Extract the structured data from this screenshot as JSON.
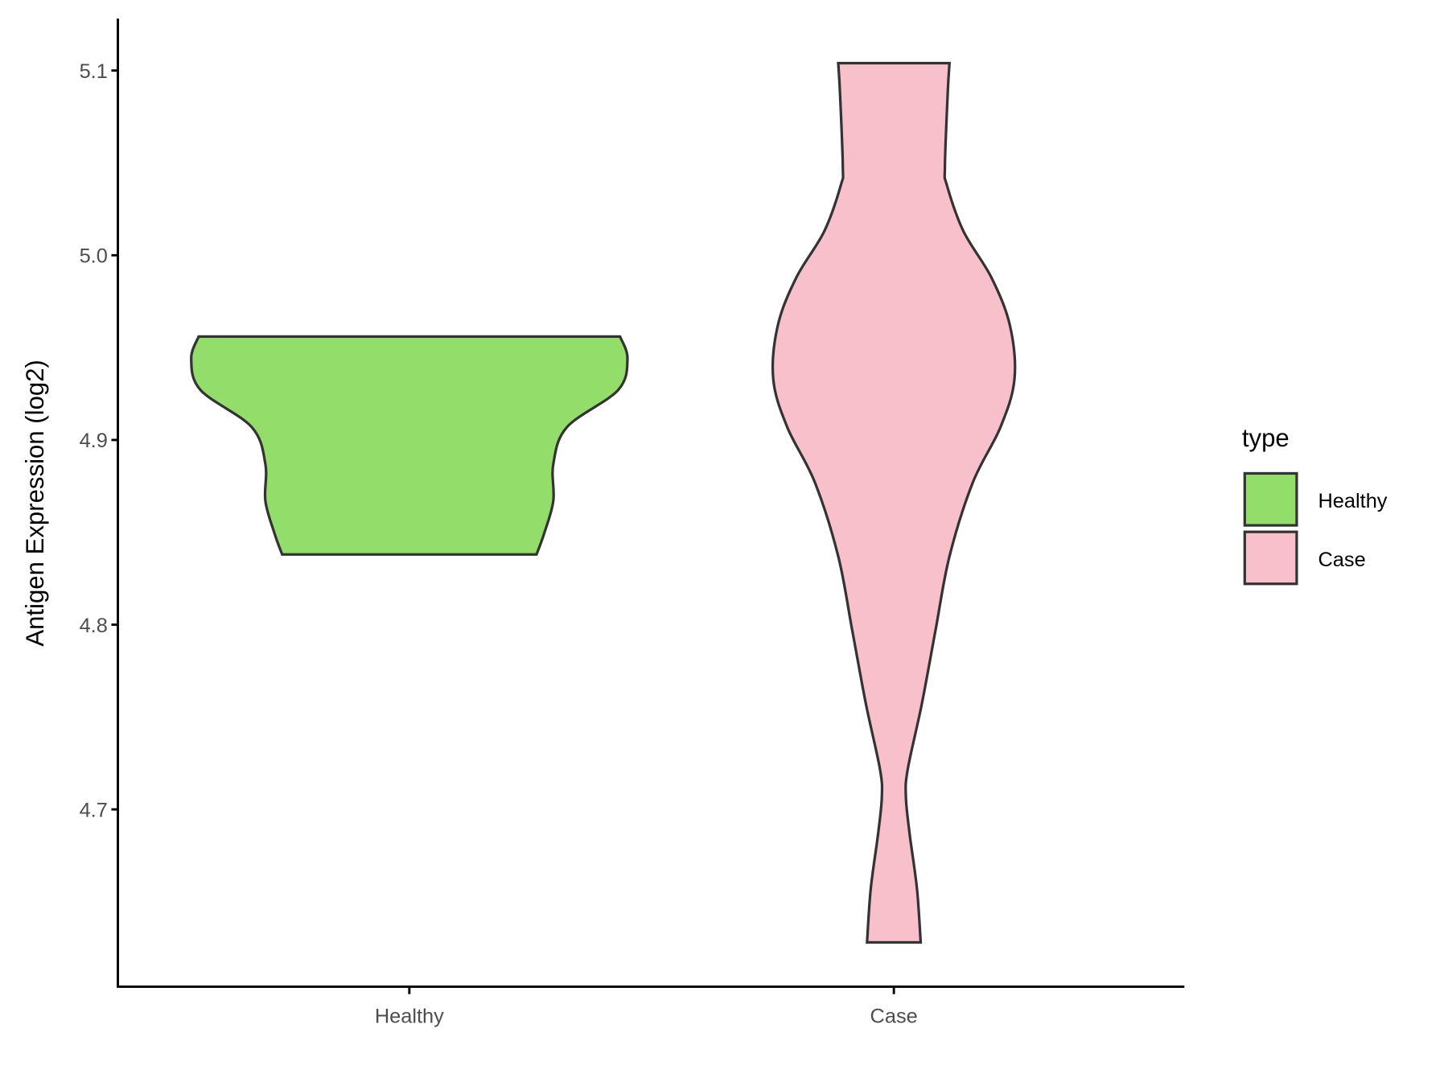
{
  "chart_data": {
    "type": "violin",
    "title": "",
    "xlabel": "",
    "ylabel": "Antigen Expression (log2)",
    "categories": [
      "Healthy",
      "Case"
    ],
    "yticks": [
      4.7,
      4.8,
      4.9,
      5.0,
      5.1
    ],
    "ytick_labels": [
      "4.7",
      "4.8",
      "4.9",
      "5.0",
      "5.1"
    ],
    "ylim": [
      4.605,
      5.128
    ],
    "grid": false,
    "legend": {
      "title": "type",
      "position": "right",
      "entries": [
        "Healthy",
        "Case"
      ]
    },
    "series": [
      {
        "name": "Healthy",
        "color": "#93DD6A",
        "profile": [
          [
            4.956,
            0.966
          ],
          [
            4.944,
            1.0
          ],
          [
            4.927,
            0.957
          ],
          [
            4.907,
            0.723
          ],
          [
            4.887,
            0.66
          ],
          [
            4.867,
            0.66
          ],
          [
            4.849,
            0.617
          ],
          [
            4.838,
            0.583
          ]
        ]
      },
      {
        "name": "Case",
        "color": "#F7C0CB",
        "profile": [
          [
            5.104,
            0.255
          ],
          [
            5.088,
            0.247
          ],
          [
            5.048,
            0.234
          ],
          [
            5.038,
            0.243
          ],
          [
            5.013,
            0.319
          ],
          [
            4.988,
            0.447
          ],
          [
            4.962,
            0.532
          ],
          [
            4.933,
            0.553
          ],
          [
            4.907,
            0.489
          ],
          [
            4.877,
            0.362
          ],
          [
            4.837,
            0.255
          ],
          [
            4.797,
            0.191
          ],
          [
            4.757,
            0.128
          ],
          [
            4.722,
            0.064
          ],
          [
            4.707,
            0.055
          ],
          [
            4.687,
            0.072
          ],
          [
            4.657,
            0.106
          ],
          [
            4.628,
            0.123
          ]
        ]
      }
    ]
  }
}
